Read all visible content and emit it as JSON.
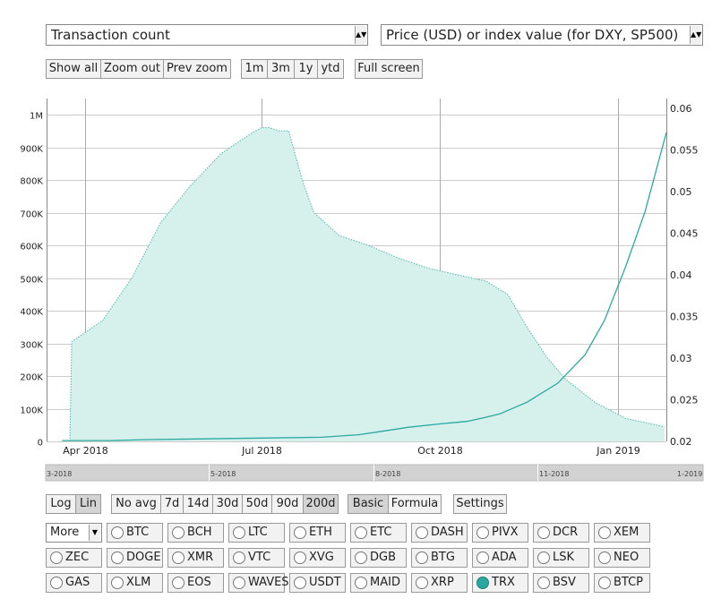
{
  "selectors": {
    "left_metric": "Transaction count",
    "right_metric": "Price (USD) or index value (for DXY, SP500)"
  },
  "zoom_buttons": [
    "Show all",
    "Zoom out",
    "Prev zoom"
  ],
  "range_buttons": [
    "1m",
    "3m",
    "1y",
    "ytd"
  ],
  "fullscreen_label": "Full screen",
  "scale_buttons": [
    {
      "label": "Log",
      "active": false
    },
    {
      "label": "Lin",
      "active": true
    }
  ],
  "avg_buttons": [
    {
      "label": "No avg",
      "active": false
    },
    {
      "label": "7d",
      "active": false
    },
    {
      "label": "14d",
      "active": false
    },
    {
      "label": "30d",
      "active": false
    },
    {
      "label": "50d",
      "active": false
    },
    {
      "label": "90d",
      "active": false
    },
    {
      "label": "200d",
      "active": true
    }
  ],
  "mode_buttons": [
    {
      "label": "Basic",
      "active": true
    },
    {
      "label": "Formula",
      "active": false
    }
  ],
  "settings_label": "Settings",
  "more_label": "More",
  "coins": [
    [
      "BTC",
      "BCH",
      "LTC",
      "ETH",
      "ETC",
      "DASH",
      "PIVX",
      "DCR",
      "XEM"
    ],
    [
      "ZEC",
      "DOGE",
      "XMR",
      "VTC",
      "XVG",
      "DGB",
      "BTG",
      "ADA",
      "LSK",
      "NEO"
    ],
    [
      "GAS",
      "XLM",
      "EOS",
      "WAVES",
      "USDT",
      "MAID",
      "XRP",
      "TRX",
      "BSV",
      "BTCP"
    ]
  ],
  "selected_coin": "TRX",
  "colors": {
    "fill": "#d6f0ec",
    "fill_line": "#4cb8ae",
    "price_line": "#2aa8a0",
    "grid": "#cccccc"
  },
  "navigator_labels": [
    "3-2018",
    "5-2018",
    "8-2018",
    "11-2018",
    "1-2019"
  ],
  "chart_data": {
    "type": "area",
    "left_axis": {
      "ticks": [
        "0",
        "100K",
        "200K",
        "300K",
        "400K",
        "500K",
        "600K",
        "700K",
        "800K",
        "900K",
        "1M"
      ],
      "ylim": [
        0,
        1000000
      ]
    },
    "right_axis": {
      "ticks": [
        "0.02",
        "0.025",
        "0.03",
        "0.035",
        "0.04",
        "0.045",
        "0.05",
        "0.055",
        "0.06"
      ],
      "ylim": [
        0.02,
        0.06
      ]
    },
    "x_ticks": [
      "Apr 2018",
      "Jul 2018",
      "Oct 2018",
      "Jan 2019"
    ],
    "xlim": [
      "2018-03-12",
      "2019-01-26"
    ],
    "grid": true,
    "series": [
      {
        "axis": "left",
        "x": [
          "2018-03-24",
          "2018-03-25",
          "2018-04-10",
          "2018-04-25",
          "2018-05-10",
          "2018-05-25",
          "2018-06-10",
          "2018-06-25",
          "2018-07-01",
          "2018-07-05",
          "2018-07-10",
          "2018-07-15",
          "2018-07-22",
          "2018-07-28",
          "2018-08-10",
          "2018-08-25",
          "2018-09-10",
          "2018-09-25",
          "2018-10-10",
          "2018-10-25",
          "2018-11-05",
          "2018-11-15",
          "2018-11-25",
          "2018-12-05",
          "2018-12-20",
          "2019-01-05",
          "2019-01-25"
        ],
        "values": [
          0,
          305000,
          370000,
          500000,
          670000,
          780000,
          880000,
          940000,
          960000,
          960000,
          950000,
          950000,
          800000,
          700000,
          630000,
          600000,
          560000,
          530000,
          510000,
          490000,
          450000,
          350000,
          260000,
          190000,
          120000,
          70000,
          45000
        ]
      },
      {
        "axis": "right",
        "x": [
          "2018-03-20",
          "2018-04-15",
          "2018-05-01",
          "2018-06-01",
          "2018-07-01",
          "2018-08-01",
          "2018-08-20",
          "2018-09-01",
          "2018-09-15",
          "2018-10-01",
          "2018-10-15",
          "2018-10-25",
          "2018-11-01",
          "2018-11-15",
          "2018-12-01",
          "2018-12-15",
          "2018-12-25",
          "2019-01-05",
          "2019-01-15",
          "2019-01-26"
        ],
        "values": [
          0.0201,
          0.0201,
          0.0202,
          0.0203,
          0.0204,
          0.0205,
          0.0208,
          0.0212,
          0.0217,
          0.0221,
          0.0224,
          0.0229,
          0.0233,
          0.0247,
          0.027,
          0.0304,
          0.0345,
          0.041,
          0.0476,
          0.0571
        ]
      }
    ]
  }
}
